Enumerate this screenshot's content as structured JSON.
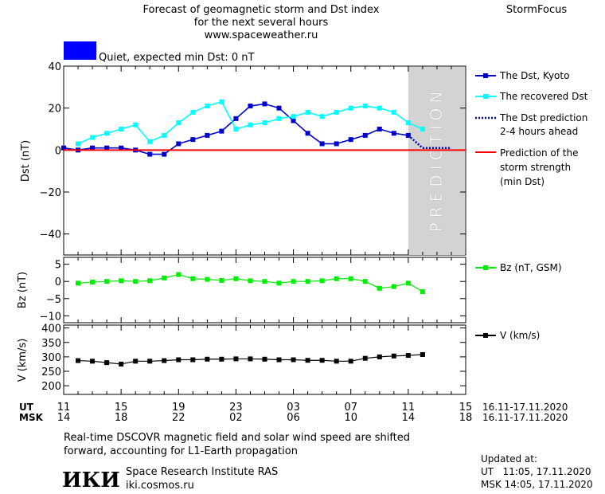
{
  "header": {
    "title_line1": "Forecast of geomagnetic storm and Dst index",
    "title_line2": "for the next several hours",
    "url": "www.spaceweather.ru",
    "brand": "StormFocus",
    "status_text": "Quiet, expected min Dst: 0 nT",
    "status_color": "#0000ff"
  },
  "prediction_label": "PREDICTION",
  "legend": {
    "dst_kyoto": "The Dst, Kyoto",
    "recovered": "The recovered Dst",
    "prediction_line1": "The Dst prediction",
    "prediction_line2": "2-4 hours ahead",
    "storm_line1": "Prediction of the",
    "storm_line2": "storm strength",
    "storm_line3": "(min Dst)",
    "bz": "Bz (nT, GSM)",
    "v": "V (km/s)"
  },
  "time_axis": {
    "ut_label": "UT",
    "msk_label": "MSK",
    "ut_ticks": [
      "11",
      "15",
      "19",
      "23",
      "03",
      "07",
      "11",
      "15"
    ],
    "msk_ticks": [
      "14",
      "18",
      "22",
      "02",
      "06",
      "10",
      "14",
      "18"
    ],
    "range_ut": "16.11-17.11.2020",
    "range_msk": "16.11-17.11.2020"
  },
  "footer": {
    "note_line1": "Real-time DSCOVR magnetic field and solar wind speed are shifted",
    "note_line2": "forward, accounting for L1-Earth propagation",
    "institute": "Space Research Institute RAS",
    "site": "iki.cosmos.ru",
    "logo_text": "ИКИ",
    "updated_label": "Updated at:",
    "updated_ut": "UT   11:05, 17.11.2020",
    "updated_msk": "MSK 14:05, 17.11.2020"
  },
  "colors": {
    "dst": "#0000cc",
    "recovered": "#00ffff",
    "prediction": "#0000cc",
    "storm": "#ff0000",
    "bz": "#00ee00",
    "v": "#000000",
    "shade": "#d3d3d3"
  },
  "chart_data": [
    {
      "type": "line",
      "ylabel": "Dst (nT)",
      "ylim": [
        -50,
        40
      ],
      "yticks": [
        40,
        20,
        0,
        -20,
        -40
      ],
      "xlim": [
        0,
        28
      ],
      "prediction_region": [
        24,
        28
      ],
      "series": [
        {
          "name": "The Dst, Kyoto",
          "x": [
            0,
            1,
            2,
            3,
            4,
            5,
            6,
            7,
            8,
            9,
            10,
            11,
            12,
            13,
            14,
            15,
            16,
            17,
            18,
            19,
            20,
            21,
            22,
            23,
            24
          ],
          "y": [
            1,
            0,
            1,
            1,
            1,
            0,
            -2,
            -2,
            3,
            5,
            7,
            9,
            15,
            21,
            22,
            20,
            14,
            8,
            3,
            3,
            5,
            7,
            10,
            8,
            7
          ]
        },
        {
          "name": "The recovered Dst",
          "x": [
            1,
            2,
            3,
            4,
            5,
            6,
            7,
            8,
            9,
            10,
            11,
            12,
            13,
            14,
            15,
            16,
            17,
            18,
            19,
            20,
            21,
            22,
            23,
            24,
            25
          ],
          "y": [
            3,
            6,
            8,
            10,
            12,
            4,
            7,
            13,
            18,
            21,
            23,
            10,
            12,
            13,
            15,
            16,
            18,
            16,
            18,
            20,
            21,
            20,
            18,
            13,
            10
          ]
        },
        {
          "name": "The Dst prediction 2-4 hours ahead",
          "x": [
            24,
            25,
            26,
            27
          ],
          "y": [
            7,
            1,
            1,
            1
          ]
        },
        {
          "name": "Prediction of the storm strength (min Dst)",
          "x": [
            0,
            28
          ],
          "y": [
            0,
            0
          ]
        }
      ]
    },
    {
      "type": "line",
      "ylabel": "Bz (nT)",
      "ylim": [
        -12,
        7
      ],
      "yticks": [
        5,
        0,
        -5,
        -10
      ],
      "series": [
        {
          "name": "Bz (nT, GSM)",
          "x": [
            1,
            2,
            3,
            4,
            5,
            6,
            7,
            8,
            9,
            10,
            11,
            12,
            13,
            14,
            15,
            16,
            17,
            18,
            19,
            20,
            21,
            22,
            23,
            24,
            25
          ],
          "y": [
            -0.5,
            -0.2,
            0,
            0.2,
            0,
            0.2,
            1,
            2,
            0.8,
            0.6,
            0.3,
            0.8,
            0.2,
            0,
            -0.5,
            0,
            0,
            0.2,
            0.8,
            0.8,
            0,
            -2,
            -1.5,
            -0.5,
            -3
          ]
        }
      ]
    },
    {
      "type": "line",
      "ylabel": "V (km/s)",
      "ylim": [
        170,
        410
      ],
      "yticks": [
        400,
        350,
        300,
        250,
        200
      ],
      "series": [
        {
          "name": "V (km/s)",
          "x": [
            1,
            2,
            3,
            4,
            5,
            6,
            7,
            8,
            9,
            10,
            11,
            12,
            13,
            14,
            15,
            16,
            17,
            18,
            19,
            20,
            21,
            22,
            23,
            24,
            25
          ],
          "y": [
            287,
            285,
            280,
            275,
            285,
            285,
            287,
            290,
            290,
            292,
            292,
            293,
            293,
            292,
            290,
            290,
            288,
            288,
            285,
            285,
            295,
            300,
            303,
            305,
            308
          ]
        }
      ]
    }
  ]
}
